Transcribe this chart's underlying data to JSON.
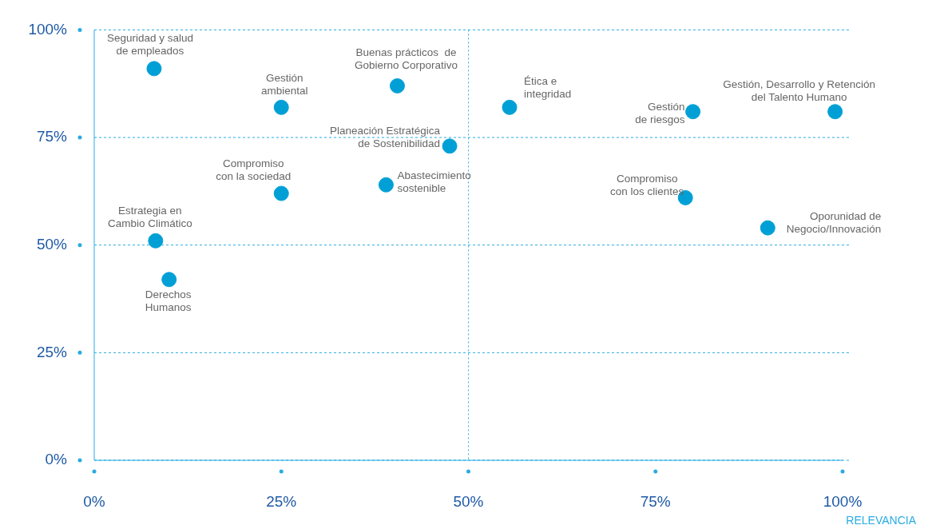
{
  "chart_data": {
    "type": "scatter",
    "xlabel": "RELEVANCIA",
    "marker": "circle",
    "grid": "y",
    "legend": false,
    "xlim": [
      0,
      100
    ],
    "ylim": [
      0,
      100
    ],
    "xticks": [
      {
        "value": 0,
        "label": "0%"
      },
      {
        "value": 25,
        "label": "25%"
      },
      {
        "value": 50,
        "label": "50%"
      },
      {
        "value": 75,
        "label": "75%"
      },
      {
        "value": 100,
        "label": "100%"
      }
    ],
    "yticks": [
      {
        "value": 0,
        "label": "0%"
      },
      {
        "value": 25,
        "label": "25%"
      },
      {
        "value": 50,
        "label": "50%"
      },
      {
        "value": 75,
        "label": "75%"
      },
      {
        "value": 100,
        "label": "100%"
      }
    ],
    "ref_lines": [
      {
        "axis": "x",
        "value": 50,
        "line_style": "dotted",
        "color": "#29abe2"
      }
    ],
    "series": [
      {
        "name": "Seguridad y salud\nde empleados",
        "color": "#00a0d6",
        "x": [
          8.0
        ],
        "values": [
          91
        ]
      },
      {
        "name": "Gestión\nambiental",
        "color": "#00a0d6",
        "x": [
          25
        ],
        "values": [
          82
        ]
      },
      {
        "name": "Buenas prácticos  de\nGobierno Corporativo",
        "color": "#00a0d6",
        "x": [
          40.5
        ],
        "values": [
          87
        ]
      },
      {
        "name": "Ética e\nintegridad",
        "color": "#00a0d6",
        "x": [
          55.5
        ],
        "values": [
          82
        ]
      },
      {
        "name": "Gestión\nde riesgos",
        "color": "#00a0d6",
        "x": [
          80
        ],
        "values": [
          81
        ]
      },
      {
        "name": "Gestión, Desarrollo y Retención\ndel Talento Humano",
        "color": "#00a0d6",
        "x": [
          99
        ],
        "values": [
          81
        ]
      },
      {
        "name": "Planeación Estratégica\nde Sostenibilidad",
        "color": "#00a0d6",
        "x": [
          47.5
        ],
        "values": [
          73
        ]
      },
      {
        "name": "Compromiso\ncon la sociedad",
        "color": "#00a0d6",
        "x": [
          25
        ],
        "values": [
          62
        ]
      },
      {
        "name": "Abastecimiento\nsostenible",
        "color": "#00a0d6",
        "x": [
          39
        ],
        "values": [
          64
        ]
      },
      {
        "name": "Compromiso\ncon los clientes",
        "color": "#00a0d6",
        "x": [
          79
        ],
        "values": [
          61
        ]
      },
      {
        "name": "Oporunidad de\nNegocio/Innovación",
        "color": "#00a0d6",
        "x": [
          90
        ],
        "values": [
          54
        ]
      },
      {
        "name": "Estrategia en\nCambio Climático",
        "color": "#00a0d6",
        "x": [
          8.2
        ],
        "values": [
          51
        ]
      },
      {
        "name": "Derechos\nHumanos",
        "color": "#00a0d6",
        "x": [
          10
        ],
        "values": [
          42
        ]
      }
    ]
  }
}
